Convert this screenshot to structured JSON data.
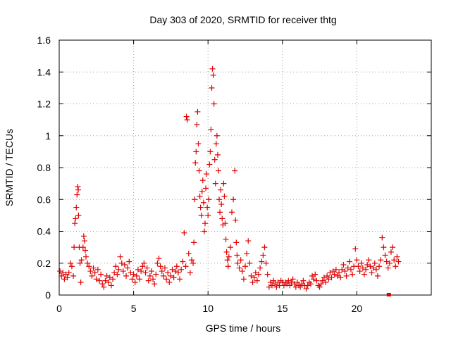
{
  "chart_data": {
    "type": "scatter",
    "title": "Day 303 of 2020, SRMTID for receiver thtg",
    "xlabel": "GPS time / hours",
    "ylabel": "SRMTID / TECUs",
    "xlim": [
      0,
      25
    ],
    "ylim": [
      0,
      1.6
    ],
    "xticks": [
      0,
      5,
      10,
      15,
      20
    ],
    "xtick_labels": [
      "0",
      "5",
      "10",
      "15",
      "20"
    ],
    "yticks": [
      0,
      0.2,
      0.4,
      0.6,
      0.8,
      1.0,
      1.2,
      1.4,
      1.6
    ],
    "ytick_labels": [
      "0",
      "0.2",
      "0.4",
      "0.6",
      "0.8",
      "1",
      "1.2",
      "1.4",
      "1.6"
    ],
    "grid": true,
    "marker": "plus",
    "color": "#e00000",
    "series": [
      {
        "name": "SRMTID",
        "points": [
          [
            0.05,
            0.15
          ],
          [
            0.15,
            0.12
          ],
          [
            0.25,
            0.14
          ],
          [
            0.35,
            0.1
          ],
          [
            0.45,
            0.13
          ],
          [
            0.55,
            0.11
          ],
          [
            0.65,
            0.14
          ],
          [
            0.75,
            0.2
          ],
          [
            0.85,
            0.18
          ],
          [
            0.95,
            0.12
          ],
          [
            1.0,
            0.3
          ],
          [
            1.05,
            0.45
          ],
          [
            1.1,
            0.48
          ],
          [
            1.15,
            0.55
          ],
          [
            1.2,
            0.63
          ],
          [
            1.25,
            0.68
          ],
          [
            1.28,
            0.66
          ],
          [
            1.3,
            0.5
          ],
          [
            1.35,
            0.3
          ],
          [
            1.4,
            0.2
          ],
          [
            1.45,
            0.08
          ],
          [
            1.5,
            0.22
          ],
          [
            1.6,
            0.3
          ],
          [
            1.65,
            0.37
          ],
          [
            1.7,
            0.34
          ],
          [
            1.75,
            0.28
          ],
          [
            1.8,
            0.24
          ],
          [
            1.9,
            0.2
          ],
          [
            2.0,
            0.18
          ],
          [
            2.1,
            0.15
          ],
          [
            2.2,
            0.12
          ],
          [
            2.3,
            0.17
          ],
          [
            2.4,
            0.14
          ],
          [
            2.5,
            0.1
          ],
          [
            2.6,
            0.16
          ],
          [
            2.7,
            0.09
          ],
          [
            2.8,
            0.13
          ],
          [
            2.9,
            0.07
          ],
          [
            3.0,
            0.05
          ],
          [
            3.1,
            0.09
          ],
          [
            3.2,
            0.12
          ],
          [
            3.3,
            0.08
          ],
          [
            3.4,
            0.11
          ],
          [
            3.5,
            0.06
          ],
          [
            3.6,
            0.1
          ],
          [
            3.7,
            0.14
          ],
          [
            3.8,
            0.18
          ],
          [
            3.9,
            0.13
          ],
          [
            4.0,
            0.16
          ],
          [
            4.1,
            0.24
          ],
          [
            4.2,
            0.2
          ],
          [
            4.3,
            0.15
          ],
          [
            4.4,
            0.19
          ],
          [
            4.5,
            0.12
          ],
          [
            4.6,
            0.17
          ],
          [
            4.7,
            0.21
          ],
          [
            4.8,
            0.14
          ],
          [
            4.9,
            0.1
          ],
          [
            5.0,
            0.13
          ],
          [
            5.1,
            0.08
          ],
          [
            5.2,
            0.12
          ],
          [
            5.3,
            0.16
          ],
          [
            5.4,
            0.1
          ],
          [
            5.5,
            0.15
          ],
          [
            5.6,
            0.18
          ],
          [
            5.7,
            0.2
          ],
          [
            5.8,
            0.14
          ],
          [
            5.9,
            0.17
          ],
          [
            6.0,
            0.09
          ],
          [
            6.1,
            0.12
          ],
          [
            6.2,
            0.15
          ],
          [
            6.3,
            0.1
          ],
          [
            6.4,
            0.07
          ],
          [
            6.5,
            0.13
          ],
          [
            6.6,
            0.2
          ],
          [
            6.7,
            0.23
          ],
          [
            6.8,
            0.18
          ],
          [
            6.9,
            0.15
          ],
          [
            7.0,
            0.12
          ],
          [
            7.1,
            0.17
          ],
          [
            7.2,
            0.1
          ],
          [
            7.3,
            0.14
          ],
          [
            7.4,
            0.08
          ],
          [
            7.5,
            0.12
          ],
          [
            7.6,
            0.16
          ],
          [
            7.7,
            0.11
          ],
          [
            7.8,
            0.15
          ],
          [
            7.9,
            0.18
          ],
          [
            8.0,
            0.14
          ],
          [
            8.1,
            0.1
          ],
          [
            8.2,
            0.16
          ],
          [
            8.3,
            0.21
          ],
          [
            8.4,
            0.39
          ],
          [
            8.5,
            0.18
          ],
          [
            8.55,
            1.12
          ],
          [
            8.6,
            1.1
          ],
          [
            8.7,
            0.26
          ],
          [
            8.8,
            0.14
          ],
          [
            8.9,
            0.22
          ],
          [
            9.0,
            0.2
          ],
          [
            9.05,
            0.33
          ],
          [
            9.1,
            0.6
          ],
          [
            9.15,
            0.83
          ],
          [
            9.2,
            0.9
          ],
          [
            9.25,
            1.07
          ],
          [
            9.3,
            1.15
          ],
          [
            9.35,
            0.95
          ],
          [
            9.4,
            0.78
          ],
          [
            9.45,
            0.62
          ],
          [
            9.5,
            0.55
          ],
          [
            9.55,
            0.5
          ],
          [
            9.6,
            0.65
          ],
          [
            9.65,
            0.72
          ],
          [
            9.7,
            0.58
          ],
          [
            9.75,
            0.4
          ],
          [
            9.8,
            0.45
          ],
          [
            9.85,
            0.67
          ],
          [
            9.9,
            0.76
          ],
          [
            9.95,
            0.55
          ],
          [
            10.0,
            0.5
          ],
          [
            10.05,
            0.6
          ],
          [
            10.1,
            0.82
          ],
          [
            10.15,
            0.9
          ],
          [
            10.2,
            1.04
          ],
          [
            10.25,
            1.3
          ],
          [
            10.3,
            1.42
          ],
          [
            10.35,
            1.38
          ],
          [
            10.4,
            1.2
          ],
          [
            10.45,
            0.85
          ],
          [
            10.5,
            0.7
          ],
          [
            10.55,
            0.95
          ],
          [
            10.6,
            1.0
          ],
          [
            10.65,
            0.88
          ],
          [
            10.7,
            0.78
          ],
          [
            10.75,
            0.6
          ],
          [
            10.8,
            0.52
          ],
          [
            10.85,
            0.66
          ],
          [
            10.9,
            0.57
          ],
          [
            10.95,
            0.48
          ],
          [
            11.0,
            0.44
          ],
          [
            11.05,
            0.7
          ],
          [
            11.1,
            0.62
          ],
          [
            11.15,
            0.45
          ],
          [
            11.2,
            0.35
          ],
          [
            11.25,
            0.27
          ],
          [
            11.3,
            0.22
          ],
          [
            11.35,
            0.18
          ],
          [
            11.4,
            0.24
          ],
          [
            11.5,
            0.3
          ],
          [
            11.6,
            0.52
          ],
          [
            11.7,
            0.6
          ],
          [
            11.8,
            0.78
          ],
          [
            11.85,
            0.47
          ],
          [
            11.9,
            0.33
          ],
          [
            11.95,
            0.25
          ],
          [
            12.0,
            0.2
          ],
          [
            12.1,
            0.17
          ],
          [
            12.2,
            0.22
          ],
          [
            12.3,
            0.15
          ],
          [
            12.4,
            0.1
          ],
          [
            12.5,
            0.18
          ],
          [
            12.6,
            0.26
          ],
          [
            12.7,
            0.34
          ],
          [
            12.8,
            0.2
          ],
          [
            12.9,
            0.12
          ],
          [
            13.0,
            0.08
          ],
          [
            13.1,
            0.11
          ],
          [
            13.2,
            0.14
          ],
          [
            13.3,
            0.09
          ],
          [
            13.4,
            0.13
          ],
          [
            13.5,
            0.17
          ],
          [
            13.6,
            0.21
          ],
          [
            13.7,
            0.25
          ],
          [
            13.8,
            0.3
          ],
          [
            13.9,
            0.2
          ],
          [
            14.0,
            0.13
          ],
          [
            14.1,
            0.05
          ],
          [
            14.2,
            0.08
          ],
          [
            14.3,
            0.06
          ],
          [
            14.4,
            0.09
          ],
          [
            14.5,
            0.07
          ],
          [
            14.6,
            0.05
          ],
          [
            14.7,
            0.08
          ],
          [
            14.8,
            0.06
          ],
          [
            14.9,
            0.09
          ],
          [
            15.0,
            0.08
          ],
          [
            15.1,
            0.06
          ],
          [
            15.2,
            0.08
          ],
          [
            15.3,
            0.07
          ],
          [
            15.4,
            0.09
          ],
          [
            15.5,
            0.06
          ],
          [
            15.6,
            0.08
          ],
          [
            15.7,
            0.1
          ],
          [
            15.8,
            0.07
          ],
          [
            15.9,
            0.05
          ],
          [
            16.0,
            0.08
          ],
          [
            16.1,
            0.06
          ],
          [
            16.2,
            0.05
          ],
          [
            16.3,
            0.07
          ],
          [
            16.4,
            0.09
          ],
          [
            16.5,
            0.06
          ],
          [
            16.6,
            0.04
          ],
          [
            16.7,
            0.06
          ],
          [
            16.8,
            0.08
          ],
          [
            16.9,
            0.07
          ],
          [
            17.0,
            0.12
          ],
          [
            17.1,
            0.1
          ],
          [
            17.2,
            0.13
          ],
          [
            17.3,
            0.09
          ],
          [
            17.4,
            0.06
          ],
          [
            17.5,
            0.05
          ],
          [
            17.6,
            0.07
          ],
          [
            17.7,
            0.09
          ],
          [
            17.8,
            0.11
          ],
          [
            17.9,
            0.08
          ],
          [
            18.0,
            0.12
          ],
          [
            18.1,
            0.1
          ],
          [
            18.2,
            0.14
          ],
          [
            18.3,
            0.11
          ],
          [
            18.4,
            0.15
          ],
          [
            18.5,
            0.13
          ],
          [
            18.6,
            0.16
          ],
          [
            18.7,
            0.12
          ],
          [
            18.8,
            0.14
          ],
          [
            18.9,
            0.11
          ],
          [
            19.0,
            0.16
          ],
          [
            19.1,
            0.19
          ],
          [
            19.2,
            0.15
          ],
          [
            19.3,
            0.12
          ],
          [
            19.4,
            0.17
          ],
          [
            19.5,
            0.21
          ],
          [
            19.6,
            0.16
          ],
          [
            19.7,
            0.13
          ],
          [
            19.8,
            0.18
          ],
          [
            19.9,
            0.29
          ],
          [
            20.0,
            0.22
          ],
          [
            20.1,
            0.18
          ],
          [
            20.2,
            0.15
          ],
          [
            20.3,
            0.2
          ],
          [
            20.4,
            0.17
          ],
          [
            20.5,
            0.13
          ],
          [
            20.6,
            0.16
          ],
          [
            20.7,
            0.19
          ],
          [
            20.8,
            0.22
          ],
          [
            20.9,
            0.18
          ],
          [
            21.0,
            0.14
          ],
          [
            21.1,
            0.17
          ],
          [
            21.2,
            0.2
          ],
          [
            21.3,
            0.16
          ],
          [
            21.4,
            0.12
          ],
          [
            21.5,
            0.18
          ],
          [
            21.6,
            0.22
          ],
          [
            21.7,
            0.36
          ],
          [
            21.8,
            0.3
          ],
          [
            21.9,
            0.25
          ],
          [
            22.0,
            0.21
          ],
          [
            22.1,
            0.17
          ],
          [
            22.2,
            0.2
          ],
          [
            22.3,
            0.27
          ],
          [
            22.4,
            0.3
          ],
          [
            22.5,
            0.22
          ],
          [
            22.6,
            0.18
          ],
          [
            22.7,
            0.24
          ],
          [
            22.8,
            0.21
          ]
        ]
      }
    ],
    "outlier_points": [
      [
        22.15,
        0.0
      ]
    ]
  }
}
